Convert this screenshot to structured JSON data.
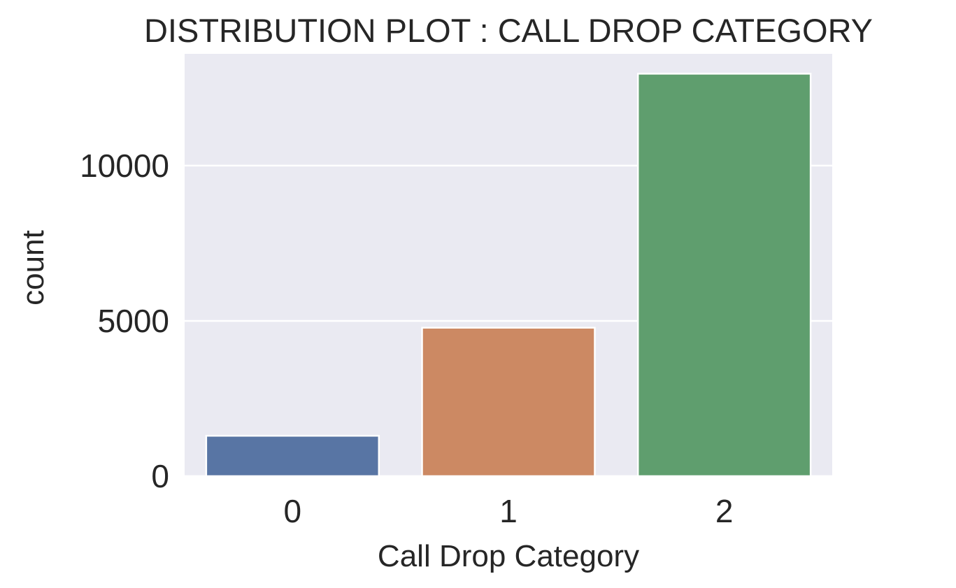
{
  "chart_data": {
    "type": "bar",
    "title": "DISTRIBUTION PLOT : CALL DROP CATEGORY",
    "xlabel": "Call Drop Category",
    "ylabel": "count",
    "categories": [
      "0",
      "1",
      "2"
    ],
    "values": [
      1300,
      4780,
      12960
    ],
    "colors": [
      "#5875a4",
      "#cc8963",
      "#5f9e6e"
    ],
    "yticks": [
      0,
      5000,
      10000
    ],
    "ytick_labels": [
      "0",
      "5000",
      "10000"
    ],
    "ylim": [
      0,
      13600
    ],
    "grid": true,
    "background": "#eaeaf2",
    "grid_color": "#ffffff"
  }
}
